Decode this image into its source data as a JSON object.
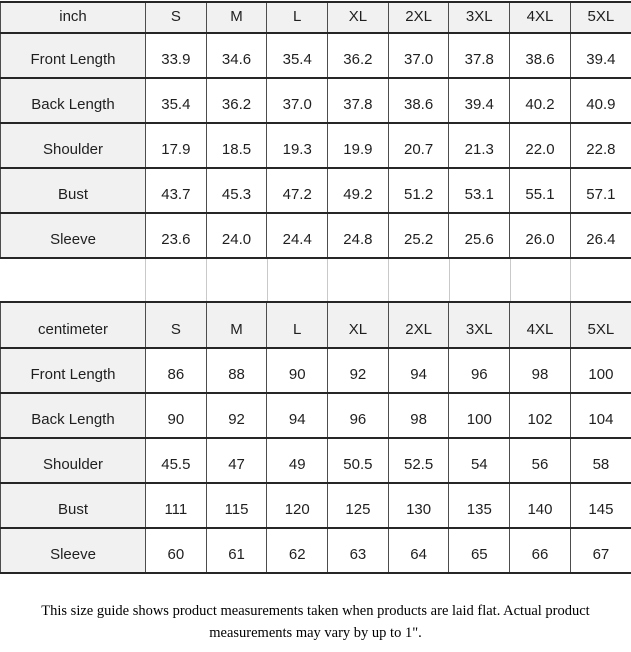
{
  "chart_data": [
    {
      "type": "table",
      "unit_label": "inch",
      "columns": [
        "S",
        "M",
        "L",
        "XL",
        "2XL",
        "3XL",
        "4XL",
        "5XL"
      ],
      "rows": [
        {
          "label": "Front Length",
          "values": [
            "33.9",
            "34.6",
            "35.4",
            "36.2",
            "37.0",
            "37.8",
            "38.6",
            "39.4"
          ]
        },
        {
          "label": "Back Length",
          "values": [
            "35.4",
            "36.2",
            "37.0",
            "37.8",
            "38.6",
            "39.4",
            "40.2",
            "40.9"
          ]
        },
        {
          "label": "Shoulder",
          "values": [
            "17.9",
            "18.5",
            "19.3",
            "19.9",
            "20.7",
            "21.3",
            "22.0",
            "22.8"
          ]
        },
        {
          "label": "Bust",
          "values": [
            "43.7",
            "45.3",
            "47.2",
            "49.2",
            "51.2",
            "53.1",
            "55.1",
            "57.1"
          ]
        },
        {
          "label": "Sleeve",
          "values": [
            "23.6",
            "24.0",
            "24.4",
            "24.8",
            "25.2",
            "25.6",
            "26.0",
            "26.4"
          ]
        }
      ]
    },
    {
      "type": "table",
      "unit_label": "centimeter",
      "columns": [
        "S",
        "M",
        "L",
        "XL",
        "2XL",
        "3XL",
        "4XL",
        "5XL"
      ],
      "rows": [
        {
          "label": "Front Length",
          "values": [
            "86",
            "88",
            "90",
            "92",
            "94",
            "96",
            "98",
            "100"
          ]
        },
        {
          "label": "Back Length",
          "values": [
            "90",
            "92",
            "94",
            "96",
            "98",
            "100",
            "102",
            "104"
          ]
        },
        {
          "label": "Shoulder",
          "values": [
            "45.5",
            "47",
            "49",
            "50.5",
            "52.5",
            "54",
            "56",
            "58"
          ]
        },
        {
          "label": "Bust",
          "values": [
            "111",
            "115",
            "120",
            "125",
            "130",
            "135",
            "140",
            "145"
          ]
        },
        {
          "label": "Sleeve",
          "values": [
            "60",
            "61",
            "62",
            "63",
            "64",
            "65",
            "66",
            "67"
          ]
        }
      ]
    }
  ],
  "note": "This size guide shows product measurements taken when products are laid flat. Actual product measurements may vary by up to 1\".",
  "colors": {
    "cell_shade": "#f1f1f1",
    "border_dark": "#262626",
    "border_vertical": "#4d4d4d",
    "gap_line": "#c9c9c9",
    "text": "#1f1f1f"
  }
}
